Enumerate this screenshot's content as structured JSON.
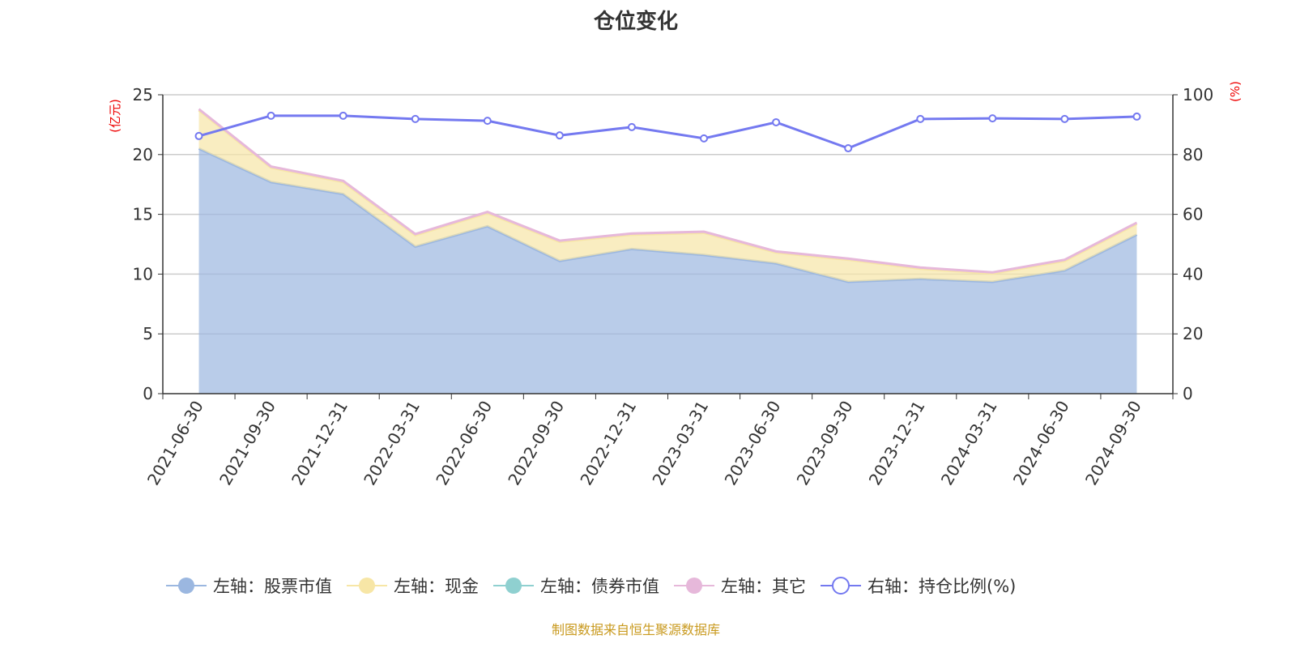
{
  "chart_data": {
    "type": "area",
    "title": "仓位变化",
    "categories": [
      "2021-06-30",
      "2021-09-30",
      "2021-12-31",
      "2022-03-31",
      "2022-06-30",
      "2022-09-30",
      "2022-12-31",
      "2023-03-31",
      "2023-06-30",
      "2023-09-30",
      "2023-12-31",
      "2024-03-31",
      "2024-06-30",
      "2024-09-30"
    ],
    "left_axis": {
      "label": "(亿元)",
      "ylim": [
        0,
        25
      ],
      "ticks": [
        0,
        5,
        10,
        15,
        20,
        25
      ]
    },
    "right_axis": {
      "label": "(%)",
      "ylim": [
        0,
        100
      ],
      "ticks": [
        0,
        20,
        40,
        60,
        80,
        100
      ]
    },
    "stacked": true,
    "grid": true,
    "legend_position": "bottom",
    "series": [
      {
        "name": "左轴：股票市值",
        "axis": "left",
        "color": "#9bb7e0",
        "values": [
          20.5,
          17.7,
          16.7,
          12.3,
          14.0,
          11.1,
          12.1,
          11.6,
          10.9,
          9.35,
          9.6,
          9.35,
          10.3,
          13.3
        ]
      },
      {
        "name": "左轴：现金",
        "axis": "left",
        "color": "#f7e6a6",
        "values": [
          3.2,
          1.2,
          1.0,
          0.95,
          1.1,
          1.6,
          1.2,
          1.85,
          0.9,
          1.85,
          0.85,
          0.7,
          0.8,
          0.9
        ]
      },
      {
        "name": "左轴：债券市值",
        "axis": "left",
        "color": "#8fd0d0",
        "values": [
          0,
          0,
          0,
          0,
          0,
          0,
          0,
          0,
          0,
          0,
          0,
          0,
          0,
          0
        ]
      },
      {
        "name": "左轴：其它",
        "axis": "left",
        "color": "#e6b8da",
        "values": [
          0.1,
          0.1,
          0.1,
          0.1,
          0.1,
          0.1,
          0.1,
          0.1,
          0.1,
          0.1,
          0.1,
          0.1,
          0.1,
          0.1
        ]
      },
      {
        "name": "右轴：持仓比例(%)",
        "axis": "right",
        "color": "#7479f0",
        "values": [
          86.2,
          93.0,
          93.0,
          91.9,
          91.3,
          86.4,
          89.2,
          85.4,
          90.8,
          82.1,
          91.9,
          92.1,
          91.9,
          92.7
        ]
      }
    ]
  },
  "source": "制图数据来自恒生聚源数据库"
}
